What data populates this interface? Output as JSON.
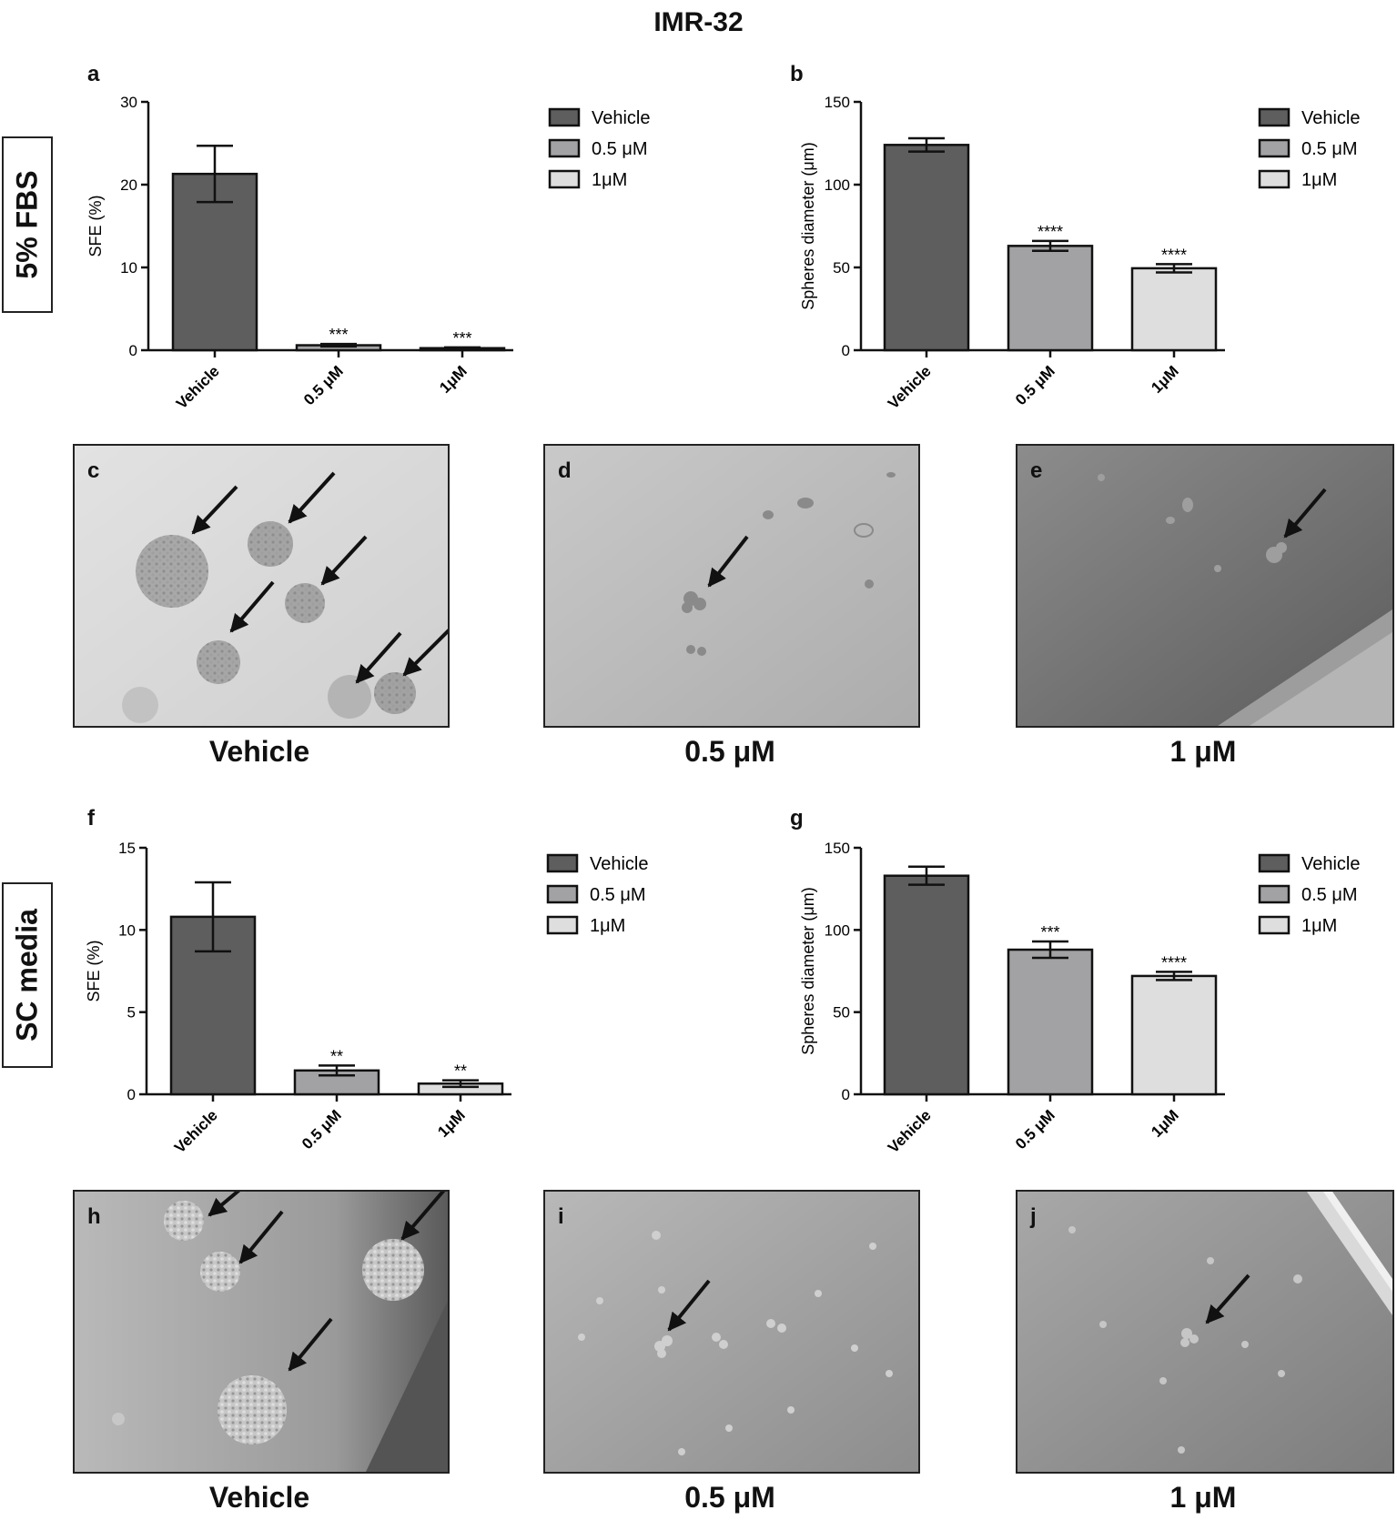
{
  "figure": {
    "title": "IMR-32",
    "sections": [
      {
        "label": "5% FBS"
      },
      {
        "label": "SC media"
      }
    ]
  },
  "chart_data": [
    {
      "panel": "a",
      "type": "bar",
      "categories": [
        "Vehicle",
        "0.5 μM",
        "1μM"
      ],
      "values": [
        21.3,
        0.6,
        0.25
      ],
      "errors": [
        3.4,
        0.15,
        0.1
      ],
      "significance": [
        "",
        "***",
        "***"
      ],
      "colors": [
        "#5e5e5e",
        "#a2a2a4",
        "#dedede"
      ],
      "ylabel": "SFE (%)",
      "ylim": [
        0,
        30
      ],
      "yticks": [
        0,
        10,
        20,
        30
      ],
      "legend": [
        "Vehicle",
        "0.5 μM",
        "1μM"
      ],
      "legend_position": "right"
    },
    {
      "panel": "b",
      "type": "bar",
      "categories": [
        "Vehicle",
        "0.5 μM",
        "1μM"
      ],
      "values": [
        124,
        63,
        49.5
      ],
      "errors": [
        4,
        3,
        2.5
      ],
      "significance": [
        "",
        "****",
        "****"
      ],
      "colors": [
        "#5e5e5e",
        "#a2a2a4",
        "#dedede"
      ],
      "ylabel": "Spheres diameter (μm)",
      "ylim": [
        0,
        150
      ],
      "yticks": [
        0,
        50,
        100,
        150
      ],
      "legend": [
        "Vehicle",
        "0.5 μM",
        "1μM"
      ],
      "legend_position": "right"
    },
    {
      "panel": "f",
      "type": "bar",
      "categories": [
        "Vehicle",
        "0.5 μM",
        "1μM"
      ],
      "values": [
        10.8,
        1.45,
        0.65
      ],
      "errors": [
        2.1,
        0.3,
        0.2
      ],
      "significance": [
        "",
        "**",
        "**"
      ],
      "colors": [
        "#5e5e5e",
        "#a2a2a4",
        "#dedede"
      ],
      "ylabel": "SFE (%)",
      "ylim": [
        0,
        15
      ],
      "yticks": [
        0,
        5,
        10,
        15
      ],
      "legend": [
        "Vehicle",
        "0.5 μM",
        "1μM"
      ],
      "legend_position": "right"
    },
    {
      "panel": "g",
      "type": "bar",
      "categories": [
        "Vehicle",
        "0.5 μM",
        "1μM"
      ],
      "values": [
        133,
        88,
        72
      ],
      "errors": [
        5.5,
        5,
        2.5
      ],
      "significance": [
        "",
        "***",
        "****"
      ],
      "colors": [
        "#5e5e5e",
        "#a2a2a4",
        "#dedede"
      ],
      "ylabel": "Spheres diameter (μm)",
      "ylim": [
        0,
        150
      ],
      "yticks": [
        0,
        50,
        100,
        150
      ],
      "legend": [
        "Vehicle",
        "0.5 μM",
        "1μM"
      ],
      "legend_position": "right"
    }
  ],
  "micrographs": [
    {
      "letter": "c",
      "caption": "Vehicle"
    },
    {
      "letter": "d",
      "caption": "0.5 μM"
    },
    {
      "letter": "e",
      "caption": "1 μM"
    },
    {
      "letter": "h",
      "caption": "Vehicle"
    },
    {
      "letter": "i",
      "caption": "0.5 μM"
    },
    {
      "letter": "j",
      "caption": "1 μM"
    }
  ]
}
